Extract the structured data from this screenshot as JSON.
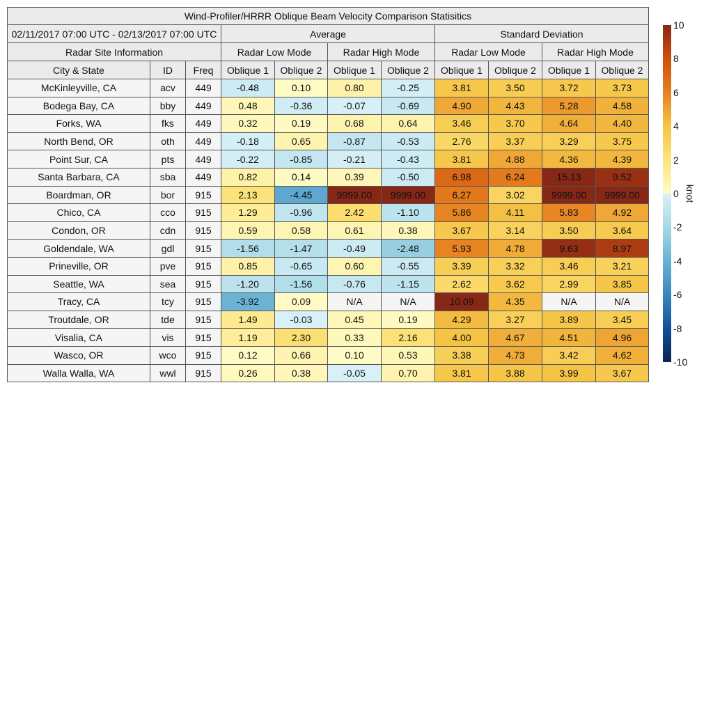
{
  "chart_data": {
    "type": "table",
    "title": "Wind-Profiler/HRRR Oblique Beam Velocity Comparison Statisitics",
    "date_range": "02/11/2017 07:00 UTC - 02/13/2017 07:00 UTC",
    "group_headers": {
      "site": "Radar Site Information",
      "average": "Average",
      "std": "Standard Deviation"
    },
    "mode_headers": [
      "Radar Low Mode",
      "Radar High Mode",
      "Radar Low Mode",
      "Radar High Mode"
    ],
    "column_headers": [
      "City & State",
      "ID",
      "Freq",
      "Oblique 1",
      "Oblique 2",
      "Oblique 1",
      "Oblique 2",
      "Oblique 1",
      "Oblique 2",
      "Oblique 1",
      "Oblique 2"
    ],
    "rows": [
      {
        "city": "McKinleyville, CA",
        "id": "acv",
        "freq": "449",
        "values": [
          "-0.48",
          "0.10",
          "0.80",
          "-0.25",
          "3.81",
          "3.50",
          "3.72",
          "3.73"
        ]
      },
      {
        "city": "Bodega Bay, CA",
        "id": "bby",
        "freq": "449",
        "values": [
          "0.48",
          "-0.36",
          "-0.07",
          "-0.69",
          "4.90",
          "4.43",
          "5.28",
          "4.58"
        ]
      },
      {
        "city": "Forks, WA",
        "id": "fks",
        "freq": "449",
        "values": [
          "0.32",
          "0.19",
          "0.68",
          "0.64",
          "3.46",
          "3.70",
          "4.64",
          "4.40"
        ]
      },
      {
        "city": "North Bend, OR",
        "id": "oth",
        "freq": "449",
        "values": [
          "-0.18",
          "0.65",
          "-0.87",
          "-0.53",
          "2.76",
          "3.37",
          "3.29",
          "3.75"
        ]
      },
      {
        "city": "Point Sur, CA",
        "id": "pts",
        "freq": "449",
        "values": [
          "-0.22",
          "-0.85",
          "-0.21",
          "-0.43",
          "3.81",
          "4.88",
          "4.36",
          "4.39"
        ]
      },
      {
        "city": "Santa Barbara, CA",
        "id": "sba",
        "freq": "449",
        "values": [
          "0.82",
          "0.14",
          "0.39",
          "-0.50",
          "6.98",
          "6.24",
          "15.13",
          "9.52"
        ]
      },
      {
        "city": "Boardman, OR",
        "id": "bor",
        "freq": "915",
        "values": [
          "2.13",
          "-4.45",
          "9999.00",
          "9999.00",
          "6.27",
          "3.02",
          "9999.00",
          "9999.00"
        ]
      },
      {
        "city": "Chico, CA",
        "id": "cco",
        "freq": "915",
        "values": [
          "1.29",
          "-0.96",
          "2.42",
          "-1.10",
          "5.86",
          "4.11",
          "5.83",
          "4.92"
        ]
      },
      {
        "city": "Condon, OR",
        "id": "cdn",
        "freq": "915",
        "values": [
          "0.59",
          "0.58",
          "0.61",
          "0.38",
          "3.67",
          "3.14",
          "3.50",
          "3.64"
        ]
      },
      {
        "city": "Goldendale, WA",
        "id": "gdl",
        "freq": "915",
        "values": [
          "-1.56",
          "-1.47",
          "-0.49",
          "-2.48",
          "5.93",
          "4.78",
          "9.63",
          "8.97"
        ]
      },
      {
        "city": "Prineville, OR",
        "id": "pve",
        "freq": "915",
        "values": [
          "0.85",
          "-0.65",
          "0.60",
          "-0.55",
          "3.39",
          "3.32",
          "3.46",
          "3.21"
        ]
      },
      {
        "city": "Seattle, WA",
        "id": "sea",
        "freq": "915",
        "values": [
          "-1.20",
          "-1.56",
          "-0.76",
          "-1.15",
          "2.62",
          "3.62",
          "2.99",
          "3.85"
        ]
      },
      {
        "city": "Tracy, CA",
        "id": "tcy",
        "freq": "915",
        "values": [
          "-3.92",
          "0.09",
          "N/A",
          "N/A",
          "10.09",
          "4.35",
          "N/A",
          "N/A"
        ]
      },
      {
        "city": "Troutdale, OR",
        "id": "tde",
        "freq": "915",
        "values": [
          "1.49",
          "-0.03",
          "0.45",
          "0.19",
          "4.29",
          "3.27",
          "3.89",
          "3.45"
        ]
      },
      {
        "city": "Visalia, CA",
        "id": "vis",
        "freq": "915",
        "values": [
          "1.19",
          "2.30",
          "0.33",
          "2.16",
          "4.00",
          "4.67",
          "4.51",
          "4.96"
        ]
      },
      {
        "city": "Wasco, OR",
        "id": "wco",
        "freq": "915",
        "values": [
          "0.12",
          "0.66",
          "0.10",
          "0.53",
          "3.38",
          "4.73",
          "3.42",
          "4.62"
        ]
      },
      {
        "city": "Walla Walla, WA",
        "id": "wwl",
        "freq": "915",
        "values": [
          "0.26",
          "0.38",
          "-0.05",
          "0.70",
          "3.81",
          "3.88",
          "3.99",
          "3.67"
        ]
      }
    ],
    "colorbar": {
      "range": [
        -10,
        10
      ],
      "ticks": [
        "10",
        "8",
        "6",
        "4",
        "2",
        "0",
        "-2",
        "-4",
        "-6",
        "-8",
        "-10"
      ],
      "unit": "knot",
      "stops": [
        {
          "v": -10,
          "c": "#08244f"
        },
        {
          "v": -8,
          "c": "#13509b"
        },
        {
          "v": -6,
          "c": "#3a86bf"
        },
        {
          "v": -4,
          "c": "#69b1d3"
        },
        {
          "v": -2,
          "c": "#a6d8e6"
        },
        {
          "v": -0.01,
          "c": "#d9f1f8"
        },
        {
          "v": 0,
          "c": "#fffcc9"
        },
        {
          "v": 2,
          "c": "#fde47c"
        },
        {
          "v": 4,
          "c": "#f5c445"
        },
        {
          "v": 5,
          "c": "#eea434"
        },
        {
          "v": 6,
          "c": "#e6801f"
        },
        {
          "v": 8,
          "c": "#cf4f0b"
        },
        {
          "v": 10,
          "c": "#872817"
        }
      ],
      "na_color": "#f5f5f5"
    }
  }
}
